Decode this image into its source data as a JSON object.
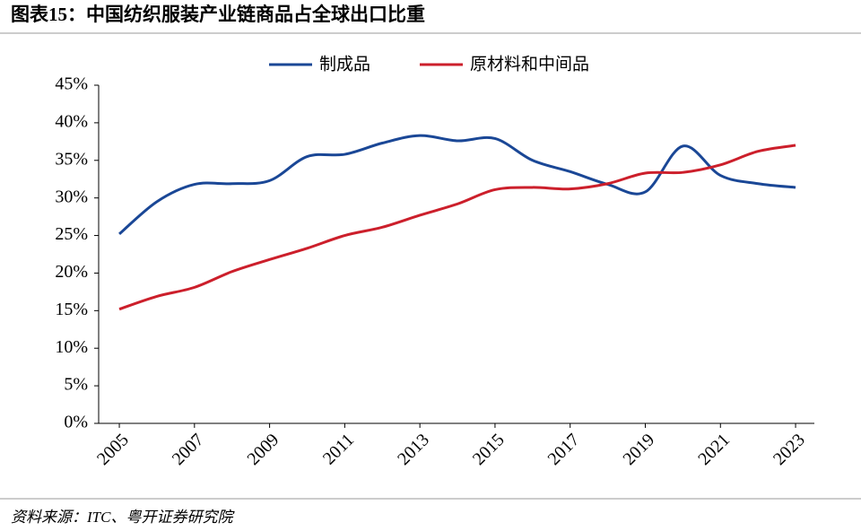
{
  "title": "图表15：中国纺织服装产业链商品占全球出口比重",
  "source": "资料来源：ITC、粤开证券研究院",
  "chart_data": {
    "type": "line",
    "x": [
      2005,
      2006,
      2007,
      2008,
      2009,
      2010,
      2011,
      2012,
      2013,
      2014,
      2015,
      2016,
      2017,
      2018,
      2019,
      2020,
      2021,
      2022,
      2023
    ],
    "series": [
      {
        "name": "制成品",
        "color": "#1a4796",
        "values": [
          25.2,
          29.5,
          31.8,
          31.9,
          32.3,
          35.5,
          35.8,
          37.3,
          38.3,
          37.6,
          37.9,
          35.0,
          33.5,
          31.8,
          30.8,
          36.9,
          33.0,
          31.9,
          31.4
        ]
      },
      {
        "name": "原材料和中间品",
        "color": "#cc1f2b",
        "values": [
          15.2,
          16.9,
          18.1,
          20.2,
          21.8,
          23.3,
          25.0,
          26.1,
          27.7,
          29.2,
          31.1,
          31.4,
          31.2,
          31.9,
          33.3,
          33.4,
          34.4,
          36.2,
          37.0
        ]
      }
    ],
    "xlim": [
      2004.45,
      2023.5
    ],
    "xticks": [
      2005,
      2007,
      2009,
      2011,
      2013,
      2015,
      2017,
      2019,
      2021,
      2023
    ],
    "ylim": [
      0,
      45
    ],
    "yticks": [
      {
        "value": 0,
        "label": "0%"
      },
      {
        "value": 5,
        "label": "5%"
      },
      {
        "value": 10,
        "label": "10%"
      },
      {
        "value": 15,
        "label": "15%"
      },
      {
        "value": 20,
        "label": "20%"
      },
      {
        "value": 25,
        "label": "25%"
      },
      {
        "value": 30,
        "label": "30%"
      },
      {
        "value": 35,
        "label": "35%"
      },
      {
        "value": 40,
        "label": "40%"
      },
      {
        "value": 45,
        "label": "45%"
      }
    ],
    "legend": "top"
  }
}
